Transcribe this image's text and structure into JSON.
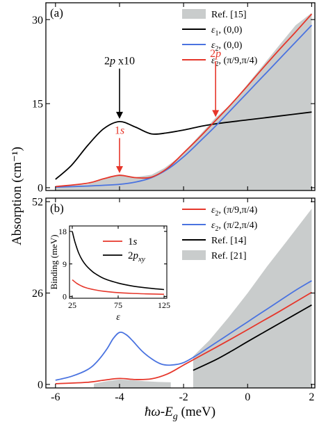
{
  "figure": {
    "y_label": "Absorption (cm⁻¹)",
    "x_label_main": "ħω-E",
    "x_label_sub": "g",
    "x_label_unit": " (meV)"
  },
  "chart_data": [
    {
      "id": "a",
      "type": "line",
      "panel_label": "(a)",
      "xlim": [
        -6.3,
        2.1
      ],
      "ylim": [
        -0.5,
        33
      ],
      "yticks": [
        0,
        15,
        30
      ],
      "xticks": [
        -6,
        -4,
        -2,
        0,
        2
      ],
      "legend_position": "top-right",
      "legend": [
        {
          "sym": "ε",
          "sub": "",
          "text": "Ref. [15]",
          "color": "#c9cccc",
          "kind": "area"
        },
        {
          "sym": "ε",
          "sub": "1",
          "text": ", (0,0)",
          "color": "#000000",
          "kind": "line"
        },
        {
          "sym": "ε",
          "sub": "2",
          "text": ", (0,0)",
          "color": "#4a73e0",
          "kind": "line"
        },
        {
          "sym": "ε",
          "sub": "2",
          "text": ", (π/9,π/4)",
          "color": "#e6362a",
          "kind": "line"
        }
      ],
      "area": {
        "name": "Ref. [15]",
        "color": "#c9cccc",
        "x": [
          -6.0,
          -5.0,
          -4.0,
          -3.5,
          -3.0,
          -2.6,
          -2.2,
          -1.8,
          -1.4,
          -1.0,
          -0.5,
          0.0,
          0.5,
          1.0,
          1.5,
          2.0
        ],
        "y": [
          0.2,
          0.6,
          2.4,
          1.9,
          2.3,
          3.5,
          5.2,
          7.5,
          10.0,
          12.5,
          15.0,
          18.5,
          22.0,
          25.5,
          29.0,
          31.2
        ]
      },
      "series": [
        {
          "name": "ε1, (0,0)",
          "color": "#000000",
          "x": [
            -6.0,
            -5.5,
            -5.0,
            -4.5,
            -4.0,
            -3.5,
            -3.0,
            -2.5,
            -2.0,
            -1.5,
            -1.0,
            0.0,
            1.0,
            2.0
          ],
          "y": [
            1.5,
            4.0,
            7.5,
            10.5,
            11.8,
            10.8,
            9.6,
            9.8,
            10.3,
            10.9,
            11.4,
            12.1,
            12.8,
            13.5
          ]
        },
        {
          "name": "ε2, (0,0)",
          "color": "#4a73e0",
          "x": [
            -6.0,
            -5.0,
            -4.0,
            -3.5,
            -3.0,
            -2.5,
            -2.0,
            -1.5,
            -1.0,
            -0.5,
            0.0,
            0.5,
            1.0,
            1.5,
            2.0
          ],
          "y": [
            0.1,
            0.3,
            0.6,
            1.0,
            1.8,
            3.3,
            5.5,
            8.2,
            11.0,
            14.0,
            17.0,
            20.0,
            23.0,
            26.0,
            29.0
          ]
        },
        {
          "name": "ε2, (π/9,π/4)",
          "color": "#e6362a",
          "x": [
            -6.0,
            -5.0,
            -4.5,
            -4.0,
            -3.5,
            -3.0,
            -2.5,
            -2.0,
            -1.5,
            -1.0,
            -0.5,
            0.0,
            0.5,
            1.0,
            1.5,
            2.0
          ],
          "y": [
            0.2,
            0.8,
            1.6,
            2.2,
            1.8,
            1.9,
            3.5,
            6.2,
            9.0,
            12.0,
            15.0,
            18.2,
            21.5,
            24.7,
            27.8,
            31.0
          ]
        }
      ],
      "annotations": [
        {
          "text_main": "2",
          "text_it": "p",
          "text_tail": " x10",
          "x": -4.0,
          "y_text": 22,
          "y_tip": 12.3,
          "color": "#000000"
        },
        {
          "text_main": "1",
          "text_it": "s",
          "text_tail": "",
          "x": -4.0,
          "y_text": 9.6,
          "y_tip": 2.6,
          "color": "#e6362a"
        },
        {
          "text_main": "2",
          "text_it": "p",
          "text_tail": "",
          "x": -1.0,
          "y_text": 23.3,
          "y_tip": 12.6,
          "color": "#e6362a"
        }
      ]
    },
    {
      "id": "b",
      "type": "line",
      "panel_label": "(b)",
      "xlim": [
        -6.3,
        2.1
      ],
      "ylim": [
        -1,
        53
      ],
      "yticks": [
        0,
        26,
        52
      ],
      "xticks": [
        -6,
        -4,
        -2,
        0,
        2
      ],
      "xtick_labels": [
        "-6",
        "-4",
        "-2",
        "0",
        "2"
      ],
      "legend_position": "top-right",
      "legend": [
        {
          "sym": "ε",
          "sub": "2",
          "text": ", (π/9,π/4)",
          "color": "#e6362a",
          "kind": "line"
        },
        {
          "sym": "ε",
          "sub": "2",
          "text": ", (π/2,π/4)",
          "color": "#4a73e0",
          "kind": "line"
        },
        {
          "sym": "ε",
          "sub": "",
          "text": "Ref. [14]",
          "color": "#000000",
          "kind": "line"
        },
        {
          "sym": "ε",
          "sub": "",
          "text": "Ref. [21]",
          "color": "#c9cccc",
          "kind": "area"
        }
      ],
      "area": [
        {
          "name": "Ref. [21]",
          "color": "#c9cccc",
          "x": [
            -4.8,
            -4.4,
            -4.0,
            -3.6,
            -3.2,
            -2.8,
            -2.4
          ],
          "y": [
            0.2,
            0.9,
            1.4,
            1.2,
            0.9,
            0.7,
            0.6
          ]
        },
        {
          "name": "Ref. [21]",
          "color": "#c9cccc",
          "x": [
            -1.7,
            -1.2,
            -0.6,
            0.0,
            0.6,
            1.2,
            2.0
          ],
          "y": [
            8.0,
            12.5,
            19.0,
            26.0,
            33.5,
            40.5,
            50.0
          ]
        }
      ],
      "series": [
        {
          "name": "ε2, (π/9,π/4)",
          "color": "#e6362a",
          "x": [
            -6.0,
            -5.0,
            -4.5,
            -4.0,
            -3.5,
            -3.0,
            -2.5,
            -2.0,
            -1.5,
            -1.0,
            -0.5,
            0.0,
            0.5,
            1.0,
            1.5,
            2.0
          ],
          "y": [
            0.2,
            0.6,
            1.2,
            1.7,
            1.4,
            1.6,
            3.0,
            5.5,
            8.0,
            10.5,
            13.0,
            15.6,
            18.2,
            20.8,
            23.5,
            26.2
          ]
        },
        {
          "name": "ε2, (π/2,π/4)",
          "color": "#4a73e0",
          "x": [
            -6.0,
            -5.5,
            -5.0,
            -4.7,
            -4.4,
            -4.2,
            -4.0,
            -3.8,
            -3.6,
            -3.3,
            -3.0,
            -2.7,
            -2.4,
            -2.0,
            -1.5,
            -1.0,
            -0.5,
            0.0,
            0.5,
            1.0,
            1.5,
            2.0
          ],
          "y": [
            1.2,
            2.3,
            4.2,
            6.5,
            10.0,
            13.0,
            14.8,
            14.2,
            12.5,
            9.5,
            7.3,
            5.8,
            5.5,
            6.2,
            8.8,
            11.8,
            14.8,
            17.8,
            20.8,
            23.8,
            26.8,
            29.5
          ]
        },
        {
          "name": "Ref. [14]",
          "color": "#000000",
          "x": [
            -1.7,
            -1.0,
            -0.5,
            0.0,
            0.5,
            1.0,
            1.5,
            2.0
          ],
          "y": [
            4.0,
            7.0,
            9.5,
            12.2,
            14.8,
            17.4,
            20.0,
            22.6
          ]
        }
      ]
    },
    {
      "id": "inset",
      "type": "line",
      "xlim": [
        22,
        128
      ],
      "ylim": [
        -0.5,
        19.5
      ],
      "yticks": [
        0,
        9,
        18
      ],
      "xticks": [
        25,
        75,
        125
      ],
      "xlabel": "ε",
      "ylabel": "Binding (meV)",
      "legend_position": "top-right",
      "legend": [
        {
          "main": "1",
          "it": "s",
          "sub": "",
          "color": "#e6362a"
        },
        {
          "main": "2",
          "it": "p",
          "sub": "xy",
          "color": "#000000"
        }
      ],
      "series": [
        {
          "name": "1s",
          "color": "#e6362a",
          "x": [
            25,
            30,
            35,
            40,
            50,
            60,
            75,
            90,
            105,
            125
          ],
          "y": [
            4.6,
            3.6,
            2.9,
            2.4,
            1.8,
            1.4,
            1.05,
            0.85,
            0.72,
            0.6
          ]
        },
        {
          "name": "2pxy",
          "color": "#000000",
          "x": [
            25,
            28,
            32,
            36,
            40,
            45,
            50,
            60,
            75,
            90,
            105,
            125
          ],
          "y": [
            18.0,
            15.0,
            12.0,
            10.0,
            8.6,
            7.3,
            6.3,
            4.9,
            3.7,
            2.9,
            2.4,
            1.9
          ]
        }
      ]
    }
  ]
}
